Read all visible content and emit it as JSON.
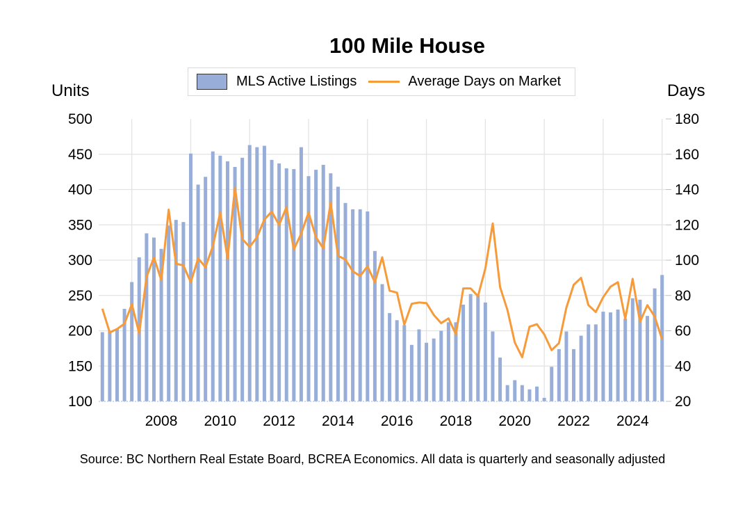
{
  "chart_data": {
    "type": "bar+line",
    "title": "100 Mile House",
    "ylabel": "Units",
    "y2label": "Days",
    "ylim": [
      100,
      500
    ],
    "y2lim": [
      20,
      180
    ],
    "yticks": [
      "500",
      "450",
      "400",
      "350",
      "300",
      "250",
      "200",
      "150",
      "100"
    ],
    "y2ticks": [
      "180",
      "160",
      "140",
      "120",
      "100",
      "80",
      "60",
      "40",
      "20"
    ],
    "xticks": [
      "2008",
      "2010",
      "2012",
      "2014",
      "2016",
      "2018",
      "2020",
      "2022",
      "2024"
    ],
    "frequency": "quarterly",
    "start": "2006 Q4",
    "end": "2025 Q4",
    "legend_position": "top",
    "grid": true,
    "series": [
      {
        "name": "MLS Active Listings",
        "type": "bar",
        "axis": "left",
        "color": "#98aed8",
        "values": [
          198,
          200,
          203,
          231,
          269,
          304,
          338,
          332,
          316,
          349,
          357,
          354,
          451,
          407,
          418,
          454,
          448,
          440,
          432,
          445,
          463,
          460,
          462,
          442,
          437,
          430,
          429,
          460,
          419,
          428,
          435,
          423,
          404,
          381,
          372,
          372,
          369,
          313,
          266,
          225,
          215,
          208,
          180,
          202,
          183,
          189,
          200,
          212,
          212,
          237,
          252,
          250,
          240,
          199,
          162,
          123,
          130,
          123,
          117,
          121,
          105,
          149,
          174,
          199,
          174,
          193,
          209,
          209,
          227,
          226,
          230,
          217,
          246,
          244,
          221,
          260,
          279
        ]
      },
      {
        "name": "Average Days on Market",
        "type": "line",
        "axis": "right",
        "color": "#f79a3a",
        "values": [
          72.5,
          59,
          61,
          64,
          75,
          58.5,
          90.6,
          101.5,
          88.6,
          128.6,
          98,
          97,
          87.5,
          101,
          96,
          108,
          127,
          101,
          141,
          112,
          107.5,
          113,
          123,
          127.5,
          120,
          130,
          106,
          115,
          127,
          113,
          106.7,
          132.5,
          102.4,
          100.4,
          93.7,
          91,
          96.5,
          87.5,
          101.6,
          82.7,
          81.6,
          63.5,
          75.3,
          76,
          75.7,
          69,
          64.3,
          67,
          58,
          84,
          84,
          79.6,
          95.3,
          120.8,
          84.7,
          71.7,
          53.3,
          45,
          62.3,
          63.7,
          58,
          49,
          53,
          73,
          86,
          90,
          74.5,
          70.6,
          79,
          85,
          87.5,
          66.7,
          89.4,
          65,
          74.5,
          68,
          55
        ]
      }
    ],
    "source": "Source: BC Northern Real Estate Board, BCREA Economics. All data is quarterly and seasonally adjusted"
  }
}
